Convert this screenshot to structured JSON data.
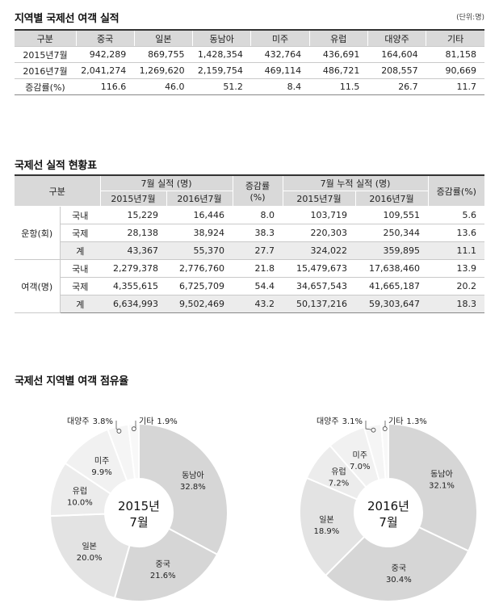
{
  "table1": {
    "title": "지역별 국제선 여객 실적",
    "unit": "(단위:명)",
    "headers": [
      "구분",
      "중국",
      "일본",
      "동남아",
      "미주",
      "유럽",
      "대양주",
      "기타"
    ],
    "rows": [
      [
        "2015년7월",
        "942,289",
        "869,755",
        "1,428,354",
        "432,764",
        "436,691",
        "164,604",
        "81,158"
      ],
      [
        "2016년7월",
        "2,041,274",
        "1,269,620",
        "2,159,754",
        "469,114",
        "486,721",
        "208,557",
        "90,669"
      ],
      [
        "증감률(%)",
        "116.6",
        "46.0",
        "51.2",
        "8.4",
        "11.5",
        "26.7",
        "11.7"
      ]
    ]
  },
  "table2": {
    "title": "국제선 실적 현황표",
    "header": {
      "category": "구분",
      "july": "7월 실적 (명)",
      "cumulative": "7월 누적 실적 (명)",
      "y2015": "2015년7월",
      "y2016": "2016년7월",
      "change": "증감률(%)"
    },
    "groups": [
      {
        "label": "운항(회)",
        "rows": [
          [
            "국내",
            "15,229",
            "16,446",
            "8.0",
            "103,719",
            "109,551",
            "5.6"
          ],
          [
            "국제",
            "28,138",
            "38,924",
            "38.3",
            "220,303",
            "250,344",
            "13.6"
          ],
          [
            "계",
            "43,367",
            "55,370",
            "27.7",
            "324,022",
            "359,895",
            "11.1"
          ]
        ]
      },
      {
        "label": "여객(명)",
        "rows": [
          [
            "국내",
            "2,279,378",
            "2,776,760",
            "21.8",
            "15,479,673",
            "17,638,460",
            "13.9"
          ],
          [
            "국제",
            "4,355,615",
            "6,725,709",
            "54.4",
            "34,657,543",
            "41,665,187",
            "20.2"
          ],
          [
            "계",
            "6,634,993",
            "9,502,469",
            "43.2",
            "50,137,216",
            "59,303,647",
            "18.3"
          ]
        ]
      }
    ]
  },
  "share_title": "국제선 지역별 여객 점유율",
  "chart_data": [
    {
      "type": "pie",
      "center_label": [
        "2015년",
        "7월"
      ],
      "categories": [
        "동남아",
        "중국",
        "일본",
        "유럽",
        "미주",
        "대양주",
        "기타"
      ],
      "values": [
        32.8,
        21.6,
        20.0,
        10.0,
        9.9,
        3.8,
        1.9
      ],
      "value_labels": [
        "32.8%",
        "21.6%",
        "20.0%",
        "10.0%",
        "9.9%",
        "3.8%",
        "1.9%"
      ],
      "colors": [
        "#d6d6d6",
        "#d6d6d6",
        "#e3e3e3",
        "#ececec",
        "#f1f1f1",
        "#f5f5f5",
        "#f8f8f8"
      ]
    },
    {
      "type": "pie",
      "center_label": [
        "2016년",
        "7월"
      ],
      "categories": [
        "동남아",
        "중국",
        "일본",
        "유럽",
        "미주",
        "대양주",
        "기타"
      ],
      "values": [
        32.1,
        30.4,
        18.9,
        7.2,
        7.0,
        3.1,
        1.3
      ],
      "value_labels": [
        "32.1%",
        "30.4%",
        "18.9%",
        "7.2%",
        "7.0%",
        "3.1%",
        "1.3%"
      ],
      "colors": [
        "#d6d6d6",
        "#d6d6d6",
        "#e3e3e3",
        "#ececec",
        "#f1f1f1",
        "#f5f5f5",
        "#f8f8f8"
      ]
    }
  ]
}
